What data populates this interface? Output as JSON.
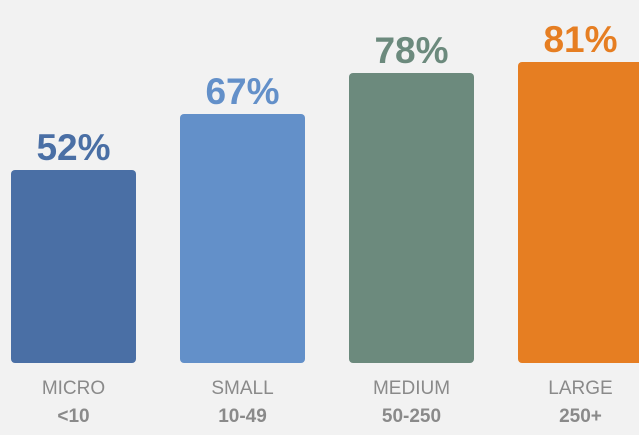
{
  "chart_data": {
    "type": "bar",
    "categories": [
      {
        "name": "MICRO",
        "range": "<10",
        "value": 52,
        "label": "52%",
        "color": "#4a6fa5"
      },
      {
        "name": "SMALL",
        "range": "10-49",
        "value": 67,
        "label": "67%",
        "color": "#6390c9"
      },
      {
        "name": "MEDIUM",
        "range": "50-250",
        "value": 78,
        "label": "78%",
        "color": "#6c8a7d"
      },
      {
        "name": "LARGE",
        "range": "250+",
        "value": 81,
        "label": "81%",
        "color": "#e67e22"
      }
    ],
    "label_colors": [
      "#4a6fa5",
      "#6390c9",
      "#6c8a7d",
      "#e67e22"
    ],
    "unit": "%",
    "grid": false
  }
}
